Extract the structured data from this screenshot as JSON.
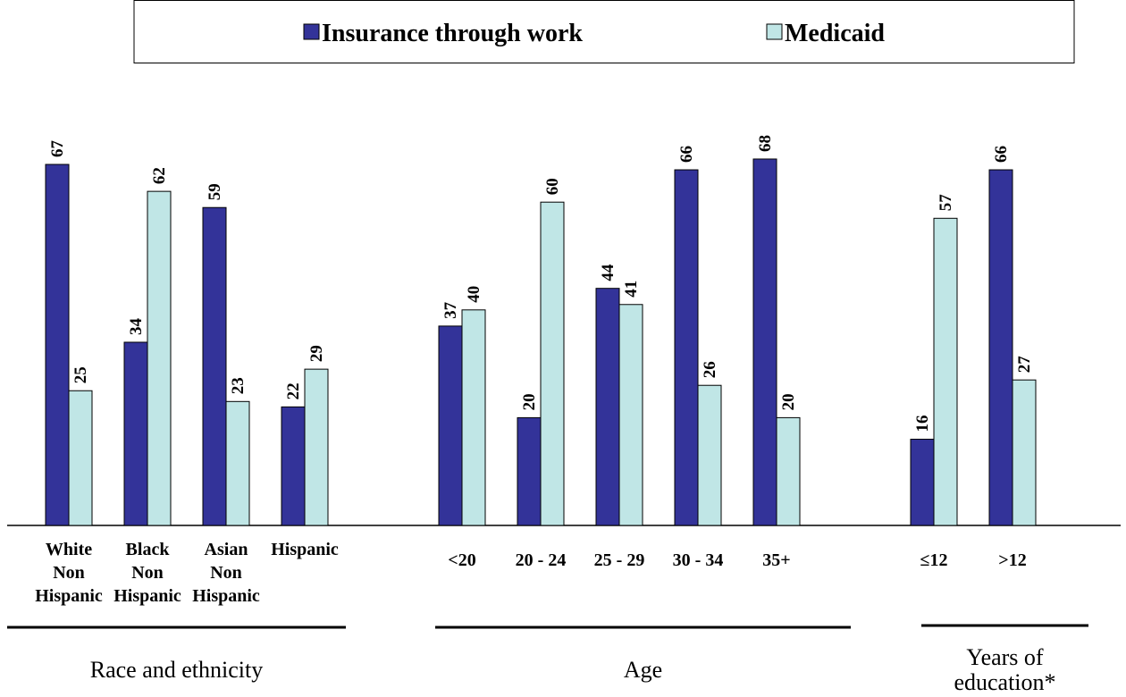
{
  "chart_data": {
    "type": "bar",
    "groups": [
      {
        "name": "Race and ethnicity",
        "categories": [
          "White\nNon\nHispanic",
          "Black\nNon\nHispanic",
          "Asian\nNon\nHispanic",
          "Hispanic"
        ]
      },
      {
        "name": "Age",
        "categories": [
          "<20",
          "20 - 24",
          "25 - 29",
          "30 - 34",
          "35+"
        ]
      },
      {
        "name": "Years of\neducation*",
        "categories": [
          "≤12",
          ">12"
        ]
      }
    ],
    "series": [
      {
        "name": "Insurance through work",
        "color": "#333399",
        "values": [
          67,
          34,
          59,
          22,
          37,
          20,
          44,
          66,
          68,
          16,
          66
        ]
      },
      {
        "name": "Medicaid",
        "color": "#c0e6e6",
        "values": [
          25,
          62,
          23,
          29,
          40,
          60,
          41,
          26,
          20,
          57,
          27
        ]
      }
    ]
  }
}
